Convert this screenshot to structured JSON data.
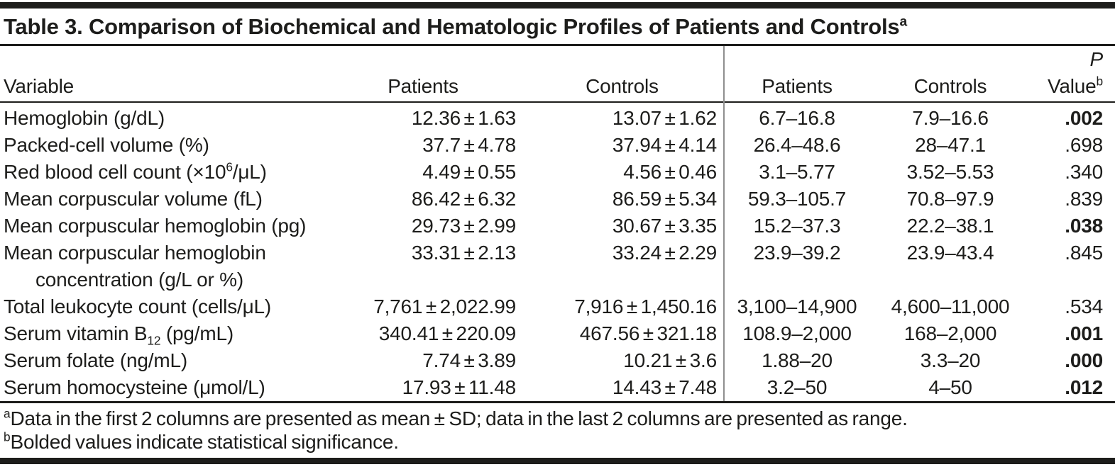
{
  "title": {
    "text": "Table 3. Comparison of Biochemical and Hematologic Profiles of Patients and Controls",
    "marker": "a"
  },
  "header": {
    "variable": "Variable",
    "patients_mean": "Patients",
    "controls_mean": "Controls",
    "patients_range": "Patients",
    "controls_range": "Controls",
    "p_symbol": "P",
    "p_word": "Value",
    "p_marker": "b"
  },
  "rows": [
    {
      "label": [
        {
          "t": "Hemoglobin (g/dL)"
        }
      ],
      "patients_mean_sd": "12.36 ± 1.63",
      "controls_mean_sd": "13.07 ± 1.62",
      "patients_range": "6.7–16.8",
      "controls_range": "7.9–16.6",
      "p_value": ".002",
      "p_significant": true
    },
    {
      "label": [
        {
          "t": "Packed-cell volume (%)"
        }
      ],
      "patients_mean_sd": "37.7 ± 4.78",
      "controls_mean_sd": "37.94 ± 4.14",
      "patients_range": "26.4–48.6",
      "controls_range": "28–47.1",
      "p_value": ".698",
      "p_significant": false
    },
    {
      "label": [
        {
          "t": "Red blood cell count (×10"
        },
        {
          "t": "6",
          "sup": true
        },
        {
          "t": "/μL)"
        }
      ],
      "patients_mean_sd": "4.49 ± 0.55",
      "controls_mean_sd": "4.56 ± 0.46",
      "patients_range": "3.1–5.77",
      "controls_range": "3.52–5.53",
      "p_value": ".340",
      "p_significant": false
    },
    {
      "label": [
        {
          "t": "Mean corpuscular volume (fL)"
        }
      ],
      "patients_mean_sd": "86.42 ± 6.32",
      "controls_mean_sd": "86.59 ± 5.34",
      "patients_range": "59.3–105.7",
      "controls_range": "70.8–97.9",
      "p_value": ".839",
      "p_significant": false
    },
    {
      "label": [
        {
          "t": "Mean corpuscular hemoglobin (pg)"
        }
      ],
      "patients_mean_sd": "29.73 ± 2.99",
      "controls_mean_sd": "30.67 ± 3.35",
      "patients_range": "15.2–37.3",
      "controls_range": "22.2–38.1",
      "p_value": ".038",
      "p_significant": true
    },
    {
      "label": [
        {
          "t": "Mean corpuscular hemoglobin"
        }
      ],
      "label_line2": "concentration (g/L or %)",
      "patients_mean_sd": "33.31 ± 2.13",
      "controls_mean_sd": "33.24 ± 2.29",
      "patients_range": "23.9–39.2",
      "controls_range": "23.9–43.4",
      "p_value": ".845",
      "p_significant": false
    },
    {
      "label": [
        {
          "t": "Total leukocyte count (cells/μL)"
        }
      ],
      "patients_mean_sd": "7,761 ± 2,022.99",
      "controls_mean_sd": "7,916 ± 1,450.16",
      "patients_range": "3,100–14,900",
      "controls_range": "4,600–11,000",
      "p_value": ".534",
      "p_significant": false
    },
    {
      "label": [
        {
          "t": "Serum vitamin B"
        },
        {
          "t": "12",
          "sub": true
        },
        {
          "t": " (pg/mL)"
        }
      ],
      "patients_mean_sd": "340.41 ± 220.09",
      "controls_mean_sd": "467.56 ± 321.18",
      "patients_range": "108.9–2,000",
      "controls_range": "168–2,000",
      "p_value": ".001",
      "p_significant": true
    },
    {
      "label": [
        {
          "t": "Serum folate (ng/mL)"
        }
      ],
      "patients_mean_sd": "7.74 ± 3.89",
      "controls_mean_sd": "10.21 ± 3.6",
      "patients_range": "1.88–20",
      "controls_range": "3.3–20",
      "p_value": ".000",
      "p_significant": true
    },
    {
      "label": [
        {
          "t": "Serum homocysteine (μmol/L)"
        }
      ],
      "patients_mean_sd": "17.93 ± 11.48",
      "controls_mean_sd": "14.43 ± 7.48",
      "patients_range": "3.2–50",
      "controls_range": "4–50",
      "p_value": ".012",
      "p_significant": true
    }
  ],
  "footnotes": [
    {
      "marker": "a",
      "text": "Data in the first 2 columns are presented as mean ± SD; data in the last 2 columns are presented as range."
    },
    {
      "marker": "b",
      "text": "Bolded values indicate statistical significance."
    }
  ],
  "colors": {
    "text": "#1d1d1b",
    "rule": "#1d1d1b",
    "column_divider": "#8f8f8f",
    "background": "#ffffff"
  }
}
